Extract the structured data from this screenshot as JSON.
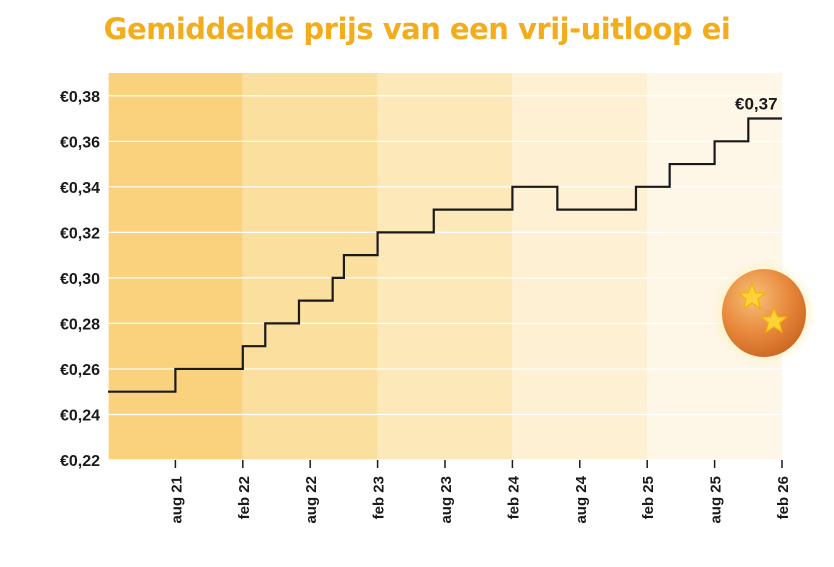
{
  "chart_data": {
    "type": "line",
    "step": true,
    "title": "Gemiddelde prijs van een vrij-uitloop ei",
    "xlabel": "",
    "ylabel": "",
    "ylim": [
      0.22,
      0.39
    ],
    "y_ticks": [
      0.22,
      0.24,
      0.26,
      0.28,
      0.3,
      0.32,
      0.34,
      0.36,
      0.38
    ],
    "y_tick_labels": [
      "€0,22",
      "€0,24",
      "€0,26",
      "€0,28",
      "€0,30",
      "€0,32",
      "€0,34",
      "€0,36",
      "€0,38"
    ],
    "x_range": [
      "2021-02",
      "2026-02"
    ],
    "x_ticks": [
      "2021-08",
      "2022-02",
      "2022-08",
      "2023-02",
      "2023-08",
      "2024-02",
      "2024-08",
      "2025-02",
      "2025-08",
      "2026-02"
    ],
    "x_tick_labels": [
      "aug 21",
      "feb 22",
      "aug 22",
      "feb 23",
      "aug 23",
      "feb 24",
      "aug 24",
      "feb 25",
      "aug 25",
      "feb 26"
    ],
    "grid": true,
    "background_bands": [
      "#fad27e",
      "#fbdf9e",
      "#fce8b9",
      "#fdf0d3",
      "#fef6e6"
    ],
    "line_color": "#1a1a1a",
    "title_color": "#f3ac1b",
    "series": [
      {
        "points": [
          [
            "2021-02",
            0.25
          ],
          [
            "2021-08",
            0.26
          ],
          [
            "2022-02",
            0.27
          ],
          [
            "2022-04",
            0.28
          ],
          [
            "2022-07",
            0.29
          ],
          [
            "2022-10",
            0.3
          ],
          [
            "2022-11",
            0.31
          ],
          [
            "2023-02",
            0.32
          ],
          [
            "2023-07",
            0.33
          ],
          [
            "2024-02",
            0.34
          ],
          [
            "2024-06",
            0.33
          ],
          [
            "2025-01",
            0.34
          ],
          [
            "2025-04",
            0.35
          ],
          [
            "2025-08",
            0.36
          ],
          [
            "2025-11",
            0.37
          ],
          [
            "2026-02",
            0.37
          ]
        ]
      }
    ],
    "annotations": [
      {
        "text": "€0,37",
        "at": [
          "2025-11",
          0.37
        ]
      }
    ]
  }
}
